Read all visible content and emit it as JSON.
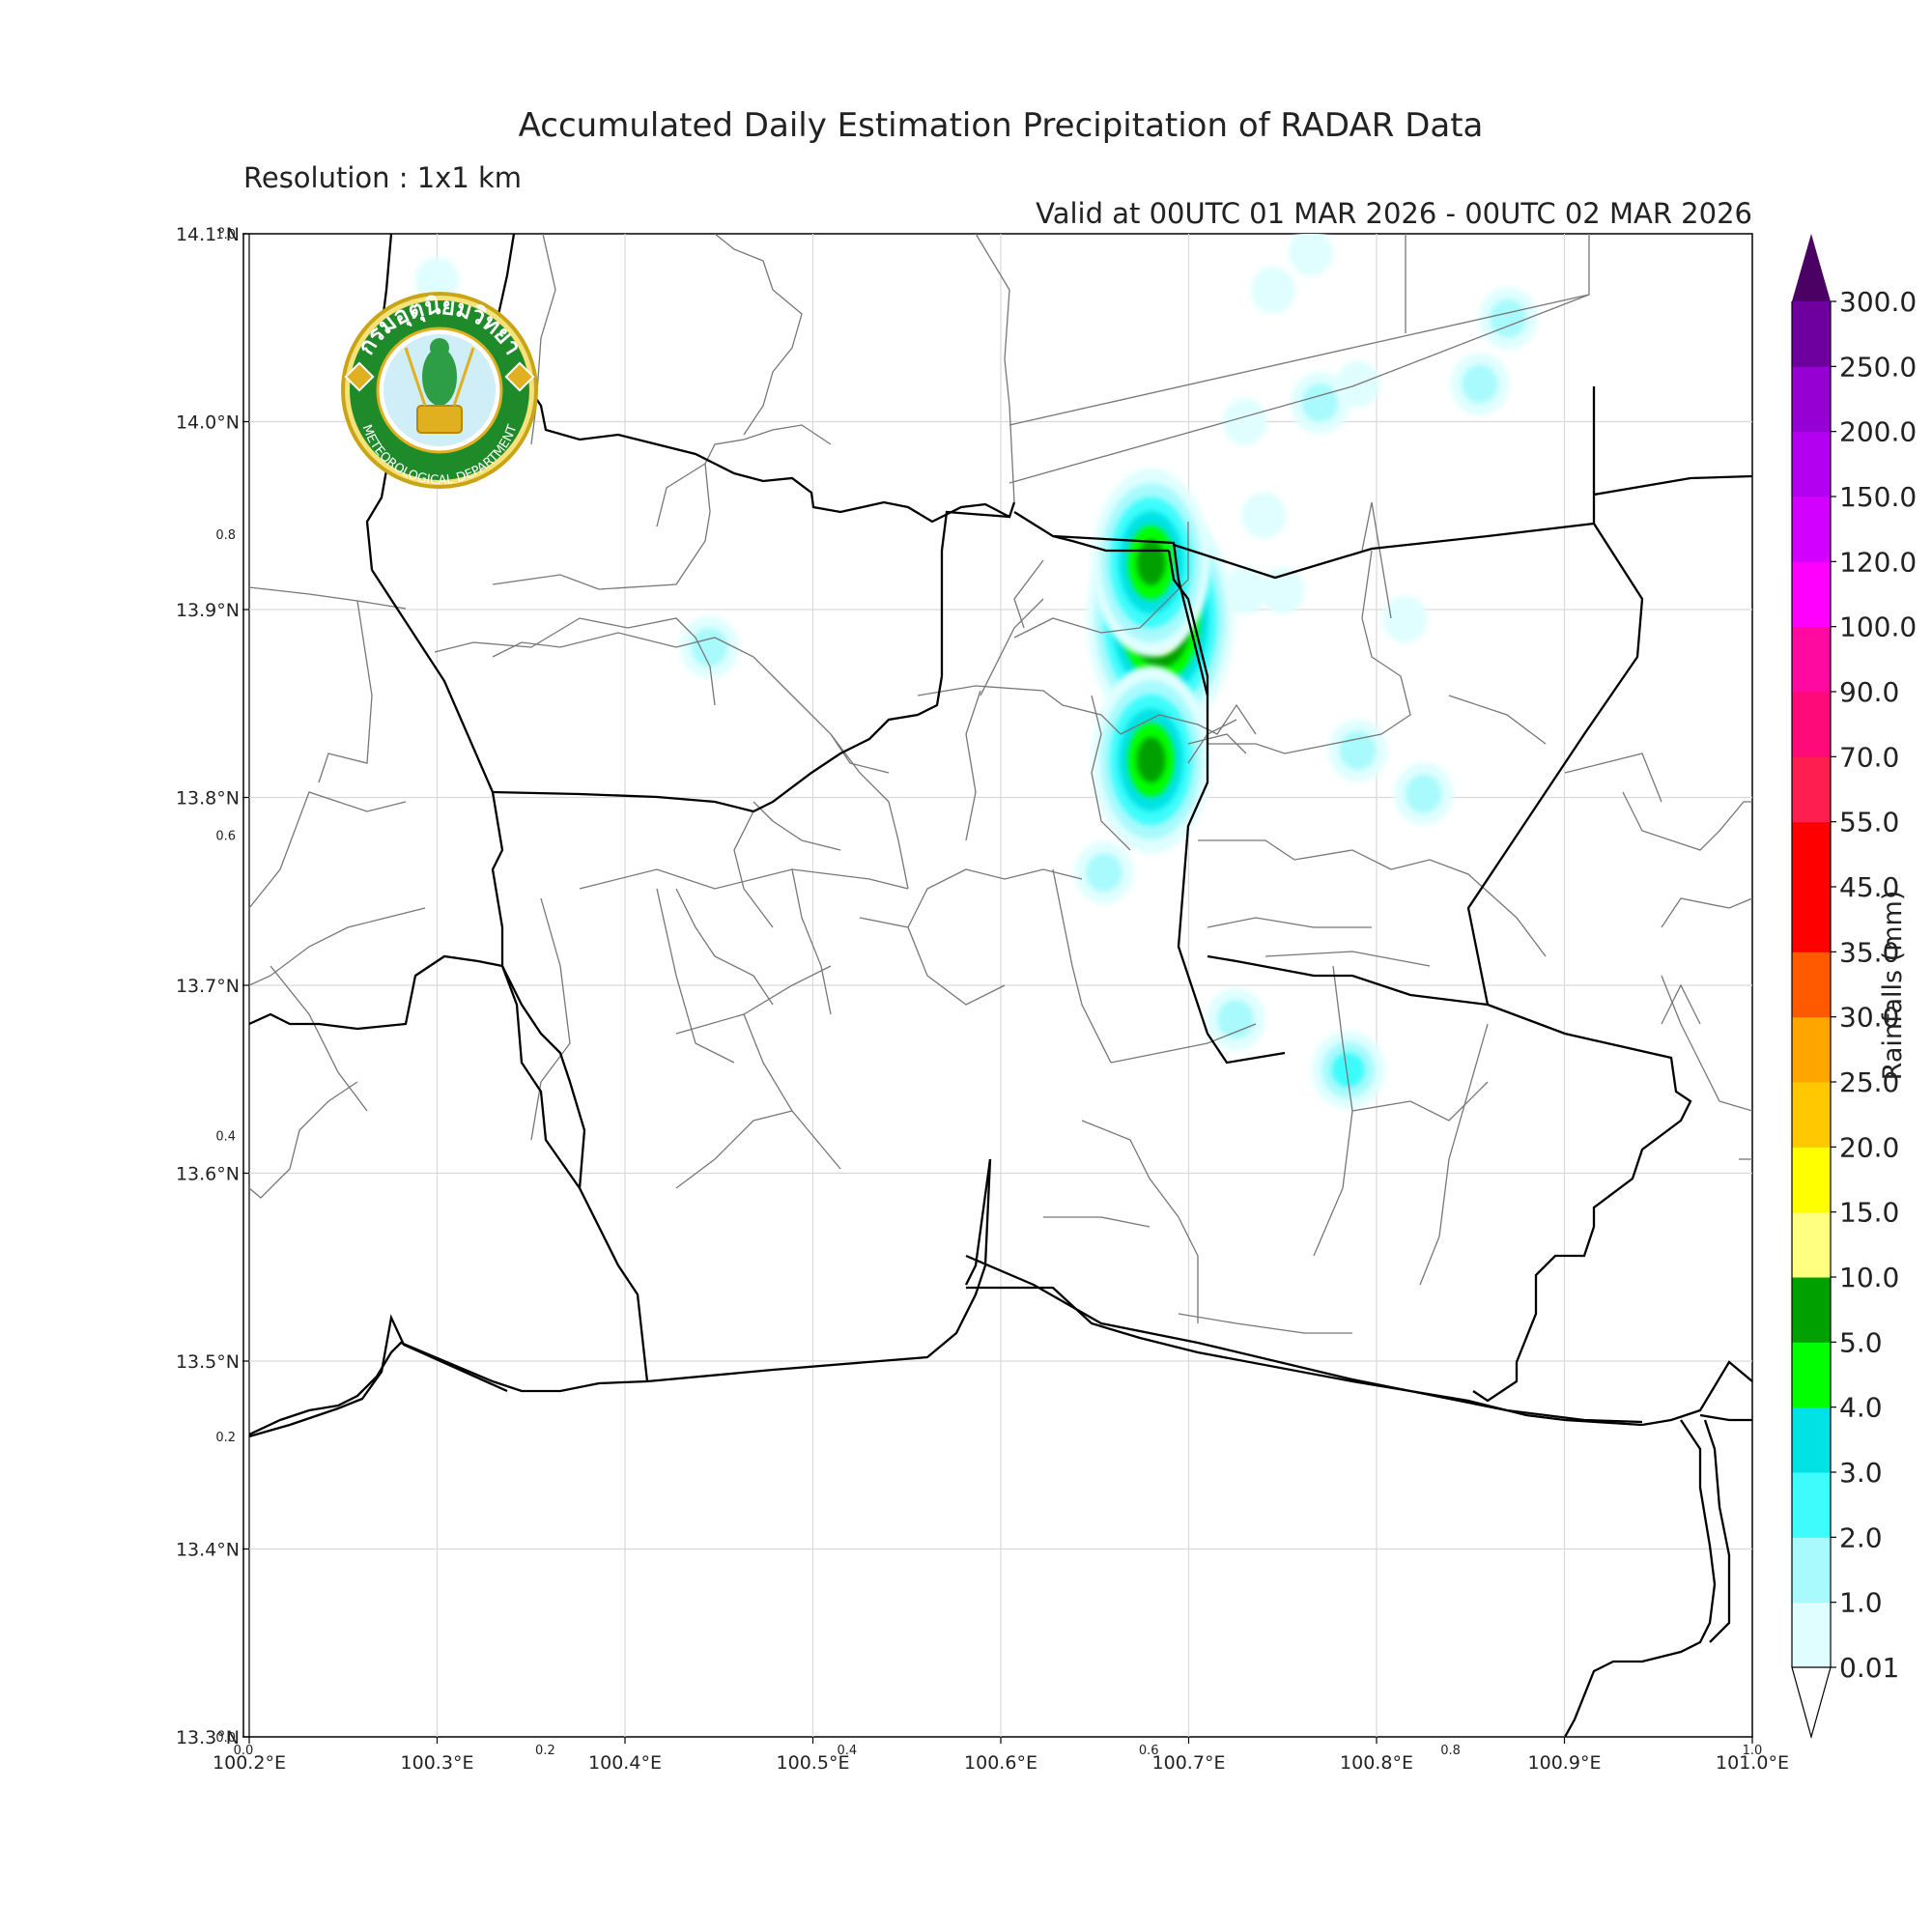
{
  "title": "Accumulated Daily Estimation Precipitation of RADAR Data",
  "resolution": "Resolution : 1x1 km",
  "valid": "Valid at 00UTC 01 MAR 2026 - 00UTC 02 MAR 2026",
  "logo": {
    "thai_text": "กรมอุตุนิยมวิทยา",
    "english_text": "METEOROLOGICAL DEPARTMENT",
    "green": "#1f8a2a",
    "gold": "#e0b020"
  },
  "chart_data": {
    "type": "heatmap",
    "lon_range": [
      100.2,
      101.0
    ],
    "lat_range": [
      13.3,
      14.1
    ],
    "x_ticks": [
      "100.2°E",
      "100.3°E",
      "100.4°E",
      "100.5°E",
      "100.6°E",
      "100.7°E",
      "100.8°E",
      "100.9°E",
      "101.0°E"
    ],
    "y_ticks": [
      "13.3°N",
      "13.4°N",
      "13.5°N",
      "13.6°N",
      "13.7°N",
      "13.8°N",
      "13.9°N",
      "14.0°N",
      "14.1°N"
    ],
    "inner_x_ticks": [
      "0.0",
      "0.2",
      "0.4",
      "0.6",
      "0.8",
      "1.0"
    ],
    "inner_y_ticks": [
      "0.0",
      "0.2",
      "0.4",
      "0.6",
      "0.8",
      "1.0"
    ],
    "grid": true,
    "colorbar": {
      "label": "Rainfalls (mm)",
      "levels": [
        "0.01",
        "1.0",
        "2.0",
        "3.0",
        "4.0",
        "5.0",
        "10.0",
        "15.0",
        "20.0",
        "25.0",
        "30.0",
        "35.0",
        "45.0",
        "55.0",
        "70.0",
        "90.0",
        "100.0",
        "120.0",
        "150.0",
        "200.0",
        "250.0",
        "300.0"
      ],
      "colors": [
        "#e0feff",
        "#a8fafc",
        "#3efcfc",
        "#00e2e4",
        "#00ff00",
        "#00a000",
        "#ffff80",
        "#ffff00",
        "#ffc800",
        "#ffa500",
        "#ff5a00",
        "#ff0000",
        "#ff0000",
        "#ff1e50",
        "#ff0a78",
        "#ff0aa0",
        "#ff00ff",
        "#d200ff",
        "#b400f0",
        "#9600d2",
        "#6e00a0"
      ],
      "under_color": "#ffffff",
      "over_color": "#4b0064"
    },
    "rain_cells": [
      {
        "lon": 100.3,
        "lat": 14.075,
        "mm": 0.5
      },
      {
        "lon": 100.73,
        "lat": 14.0,
        "mm": 0.5
      },
      {
        "lon": 100.77,
        "lat": 14.01,
        "mm": 1.5
      },
      {
        "lon": 100.79,
        "lat": 14.02,
        "mm": 0.5
      },
      {
        "lon": 100.855,
        "lat": 14.02,
        "mm": 1.5
      },
      {
        "lon": 100.87,
        "lat": 14.055,
        "mm": 1.0
      },
      {
        "lon": 100.765,
        "lat": 14.09,
        "mm": 0.5
      },
      {
        "lon": 100.745,
        "lat": 14.07,
        "mm": 0.5
      },
      {
        "lon": 100.74,
        "lat": 13.95,
        "mm": 0.5
      },
      {
        "lon": 100.73,
        "lat": 13.91,
        "mm": 0.5
      },
      {
        "lon": 100.75,
        "lat": 13.91,
        "mm": 0.5
      },
      {
        "lon": 100.815,
        "lat": 13.895,
        "mm": 0.5
      },
      {
        "lon": 100.695,
        "lat": 13.925,
        "mm": 0.5
      },
      {
        "lon": 100.685,
        "lat": 13.895,
        "mm": 15.0
      },
      {
        "lon": 100.68,
        "lat": 13.925,
        "mm": 7.0
      },
      {
        "lon": 100.68,
        "lat": 13.82,
        "mm": 7.0
      },
      {
        "lon": 100.655,
        "lat": 13.76,
        "mm": 1.5
      },
      {
        "lon": 100.725,
        "lat": 13.682,
        "mm": 1.5
      },
      {
        "lon": 100.785,
        "lat": 13.655,
        "mm": 2.5
      },
      {
        "lon": 100.79,
        "lat": 13.825,
        "mm": 1.0
      },
      {
        "lon": 100.825,
        "lat": 13.802,
        "mm": 1.0
      },
      {
        "lon": 100.445,
        "lat": 13.88,
        "mm": 1.0
      }
    ]
  }
}
